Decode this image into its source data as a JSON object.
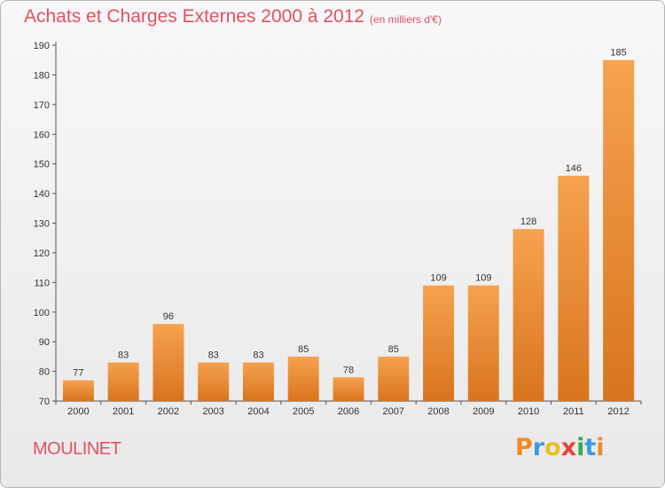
{
  "chart_data": {
    "type": "bar",
    "title": "Achats et Charges Externes 2000 à 2012",
    "subtitle": "(en milliers d'€)",
    "xlabel": "",
    "ylabel": "",
    "categories": [
      "2000",
      "2001",
      "2002",
      "2003",
      "2004",
      "2005",
      "2006",
      "2007",
      "2008",
      "2009",
      "2010",
      "2011",
      "2012"
    ],
    "values": [
      77,
      83,
      96,
      83,
      83,
      85,
      78,
      85,
      109,
      109,
      128,
      146,
      185
    ],
    "ylim": [
      70,
      190
    ],
    "yticks": [
      70,
      80,
      90,
      100,
      110,
      120,
      130,
      140,
      150,
      160,
      170,
      180,
      190
    ],
    "grid": false,
    "legend": "none",
    "bar_color_top": "#f6a24f",
    "bar_color_bottom": "#d9741e"
  },
  "commune": "MOULINET",
  "logo": {
    "letters": [
      "P",
      "r",
      "o",
      "x",
      "i",
      "t",
      "i"
    ],
    "colors": [
      "#f08a24",
      "#3a9be0",
      "#e8c021",
      "#e8423d",
      "#3aa94f",
      "#3a9be0",
      "#f08a24"
    ]
  },
  "colors": {
    "title": "#e05263",
    "axis": "#555555"
  }
}
